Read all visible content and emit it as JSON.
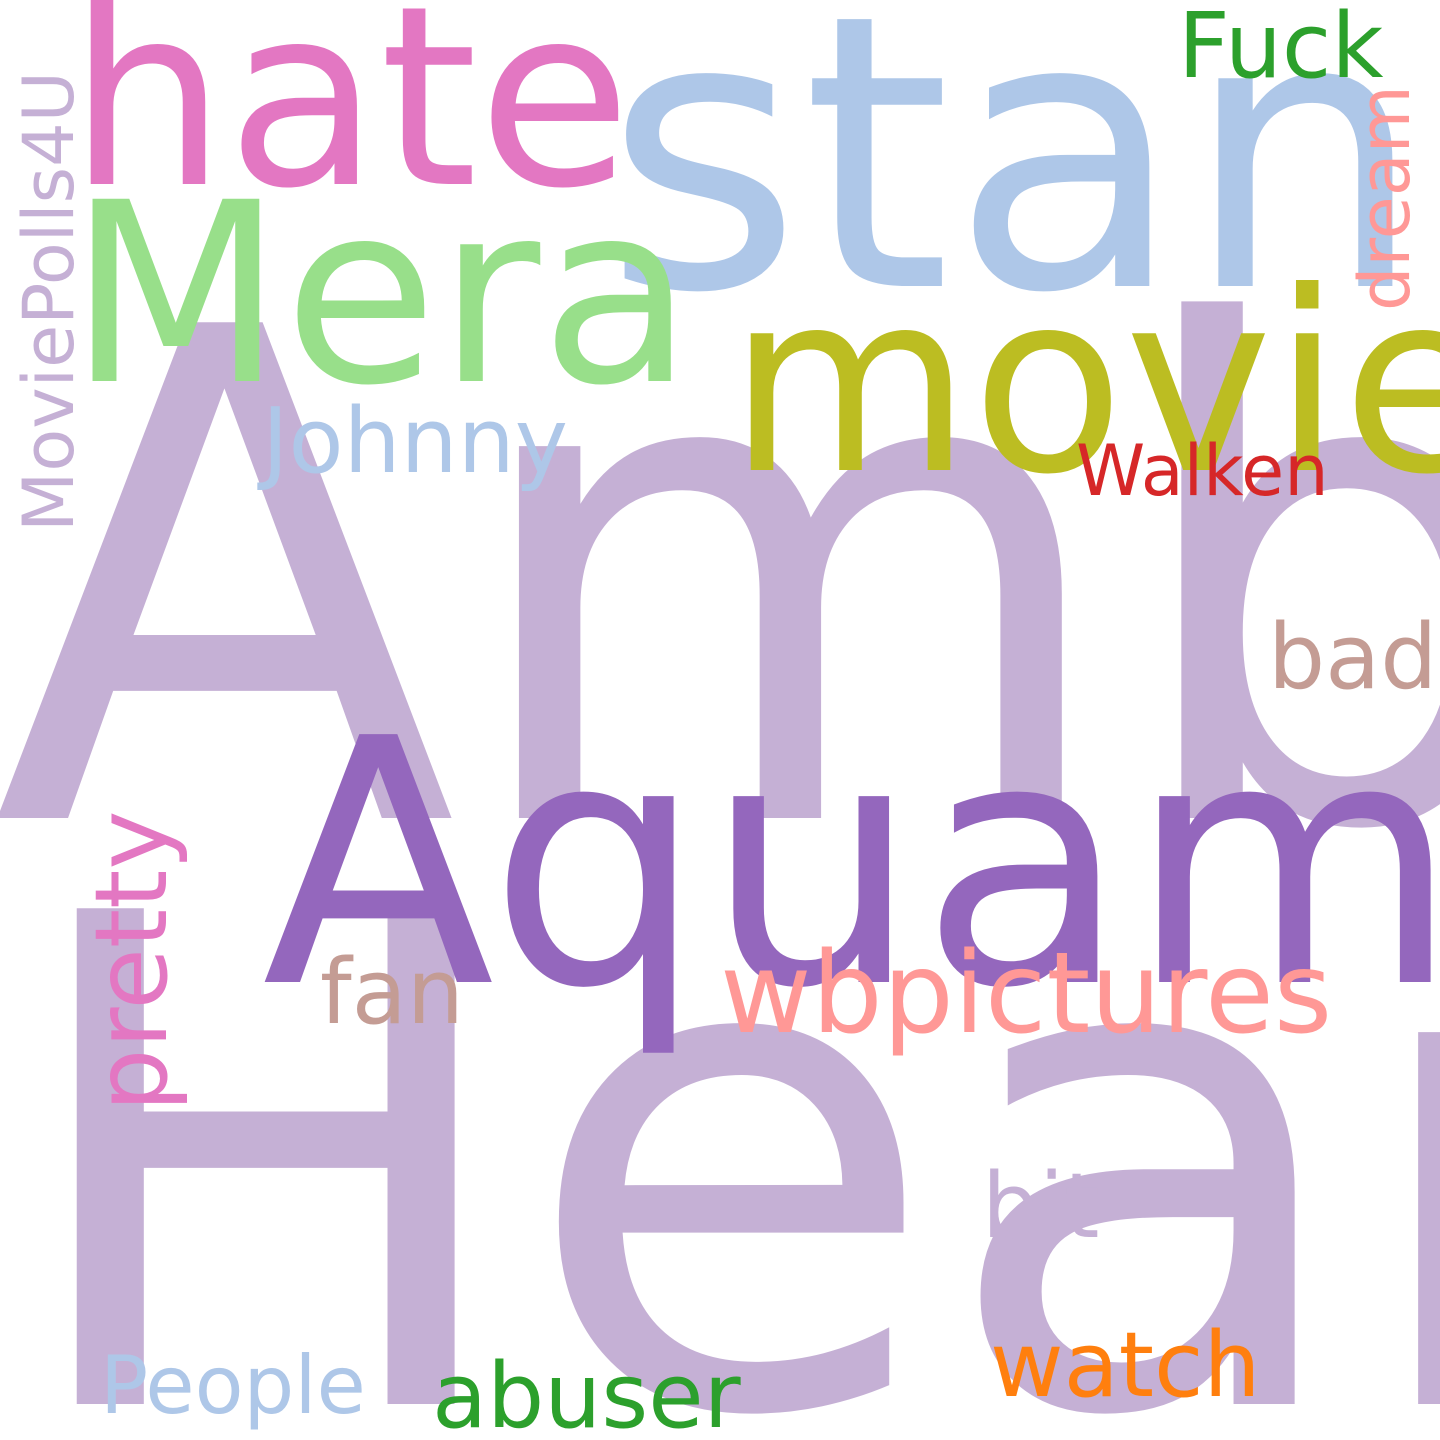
{
  "words": [
    {
      "id": "amber",
      "text": "Amber",
      "color": "#c5b0d5",
      "orientation": "horizontal"
    },
    {
      "id": "heard",
      "text": "Heard",
      "color": "#c5b0d5",
      "orientation": "horizontal"
    },
    {
      "id": "aquaman",
      "text": "Aquaman",
      "color": "#9467bd",
      "orientation": "horizontal"
    },
    {
      "id": "stan",
      "text": "stan",
      "color": "#aec7e8",
      "orientation": "horizontal"
    },
    {
      "id": "hate",
      "text": "hate",
      "color": "#e377c2",
      "orientation": "horizontal"
    },
    {
      "id": "mera",
      "text": "Mera",
      "color": "#98df8a",
      "orientation": "horizontal"
    },
    {
      "id": "movie",
      "text": "movie",
      "color": "#bcbd22",
      "orientation": "horizontal"
    },
    {
      "id": "wbpictures",
      "text": "wbpictures",
      "color": "#ff9896",
      "orientation": "horizontal"
    },
    {
      "id": "fuck",
      "text": "Fuck",
      "color": "#2ca02c",
      "orientation": "horizontal"
    },
    {
      "id": "johnny",
      "text": "Johnny",
      "color": "#aec7e8",
      "orientation": "horizontal"
    },
    {
      "id": "walken",
      "text": "Walken",
      "color": "#d62728",
      "orientation": "horizontal"
    },
    {
      "id": "bad",
      "text": "bad",
      "color": "#c49c94",
      "orientation": "horizontal"
    },
    {
      "id": "fan",
      "text": "fan",
      "color": "#c49c94",
      "orientation": "horizontal"
    },
    {
      "id": "bit",
      "text": "bit",
      "color": "#c5b0d5",
      "orientation": "horizontal"
    },
    {
      "id": "watch",
      "text": "watch",
      "color": "#ff7f0e",
      "orientation": "horizontal"
    },
    {
      "id": "abuser",
      "text": "abuser",
      "color": "#2ca02c",
      "orientation": "horizontal"
    },
    {
      "id": "people",
      "text": "People",
      "color": "#aec7e8",
      "orientation": "horizontal"
    },
    {
      "id": "moviepolls",
      "text": "MoviePolls4U",
      "color": "#c5b0d5",
      "orientation": "vertical"
    },
    {
      "id": "dream",
      "text": "dream",
      "color": "#ff9896",
      "orientation": "vertical"
    },
    {
      "id": "pretty",
      "text": "pretty",
      "color": "#e377c2",
      "orientation": "vertical"
    }
  ]
}
